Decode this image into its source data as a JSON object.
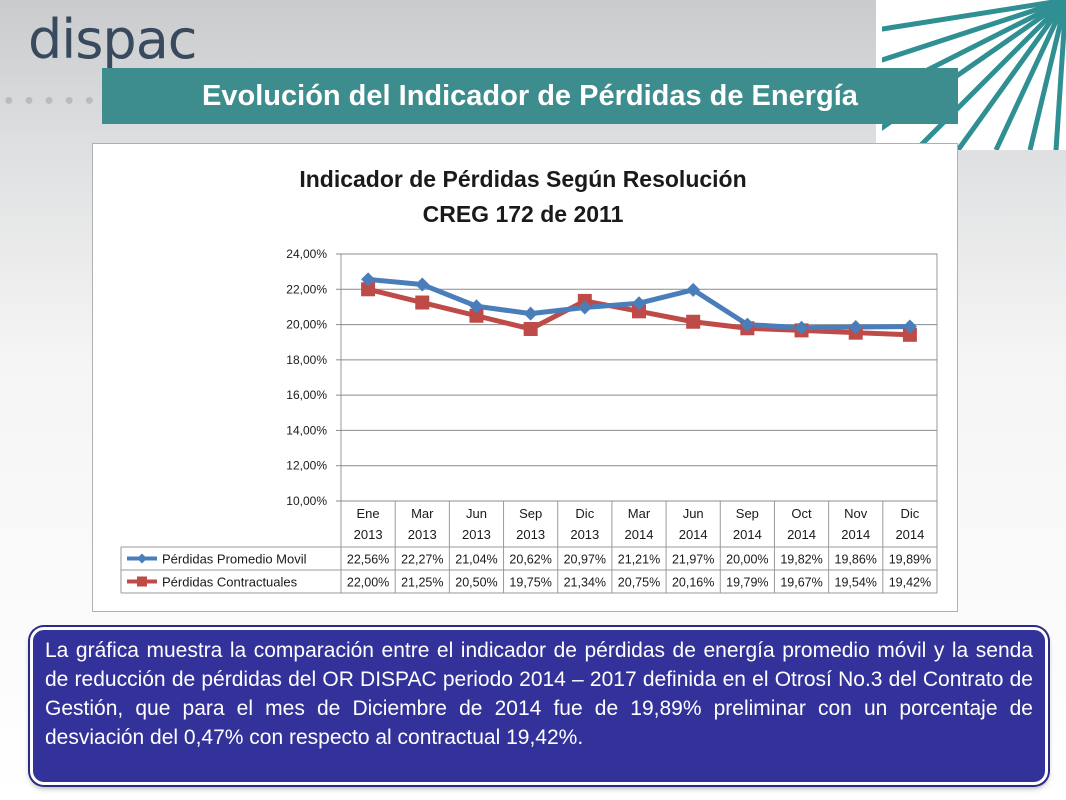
{
  "logo": {
    "text": "dispac"
  },
  "slide_title": "Evolución del Indicador de Pérdidas de Energía",
  "description": "La gráfica muestra la comparación entre el indicador de pérdidas de energía promedio móvil y la senda de reducción de pérdidas del OR DISPAC periodo 2014 – 2017 definida en el Otrosí No.3 del Contrato de Gestión, que para el mes de Diciembre de 2014 fue de 19,89% preliminar con un porcentaje de desviación del 0,47% con respecto al contractual 19,42%.",
  "chart_data": {
    "type": "line",
    "title_line1": "Indicador de Pérdidas Según Resolución",
    "title_line2": "CREG 172 de 2011",
    "categories": [
      [
        "Ene",
        "2013"
      ],
      [
        "Mar",
        "2013"
      ],
      [
        "Jun",
        "2013"
      ],
      [
        "Sep",
        "2013"
      ],
      [
        "Dic",
        "2013"
      ],
      [
        "Mar",
        "2014"
      ],
      [
        "Jun",
        "2014"
      ],
      [
        "Sep",
        "2014"
      ],
      [
        "Oct",
        "2014"
      ],
      [
        "Nov",
        "2014"
      ],
      [
        "Dic",
        "2014"
      ]
    ],
    "ylim": [
      10,
      24
    ],
    "yticks": [
      10,
      12,
      14,
      16,
      18,
      20,
      22,
      24
    ],
    "ytick_labels": [
      "10,00%",
      "12,00%",
      "14,00%",
      "16,00%",
      "18,00%",
      "20,00%",
      "22,00%",
      "24,00%"
    ],
    "grid": true,
    "legend": "data-table-left",
    "series": [
      {
        "name": "Pérdidas Promedio Movil",
        "color": "#4a7ebb",
        "marker": "diamond",
        "values": [
          22.56,
          22.27,
          21.04,
          20.62,
          20.97,
          21.21,
          21.97,
          20.0,
          19.82,
          19.86,
          19.89
        ],
        "labels": [
          "22,56%",
          "22,27%",
          "21,04%",
          "20,62%",
          "20,97%",
          "21,21%",
          "21,97%",
          "20,00%",
          "19,82%",
          "19,86%",
          "19,89%"
        ]
      },
      {
        "name": "Pérdidas Contractuales",
        "color": "#be4b48",
        "marker": "square",
        "values": [
          22.0,
          21.25,
          20.5,
          19.75,
          21.34,
          20.75,
          20.16,
          19.79,
          19.67,
          19.54,
          19.42
        ],
        "labels": [
          "22,00%",
          "21,25%",
          "20,50%",
          "19,75%",
          "21,34%",
          "20,75%",
          "20,16%",
          "19,79%",
          "19,67%",
          "19,54%",
          "19,42%"
        ]
      }
    ]
  }
}
